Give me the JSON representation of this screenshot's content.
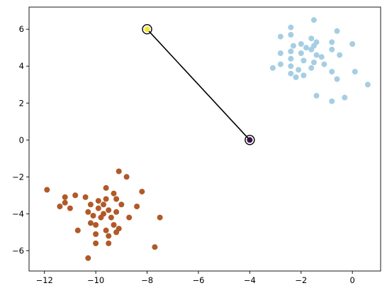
{
  "chart_data": {
    "type": "scatter",
    "title": "",
    "xlabel": "",
    "ylabel": "",
    "xlim": [
      -12.6,
      1.1
    ],
    "ylim": [
      -7.1,
      7.2
    ],
    "x_ticks": [
      -12,
      -10,
      -8,
      -6,
      -4,
      -2,
      0
    ],
    "y_ticks": [
      -6,
      -4,
      -2,
      0,
      2,
      4,
      6
    ],
    "x_tick_labels": [
      "−12",
      "−10",
      "−8",
      "−6",
      "−4",
      "−2",
      "0"
    ],
    "y_tick_labels": [
      "−6",
      "−4",
      "−2",
      "0",
      "2",
      "4",
      "6"
    ],
    "grid": false,
    "series": [
      {
        "color": "#a6cee3",
        "points": [
          [
            -1.5,
            6.5
          ],
          [
            -2.4,
            6.1
          ],
          [
            -0.6,
            5.9
          ],
          [
            -2.8,
            5.6
          ],
          [
            -2.4,
            5.7
          ],
          [
            -1.6,
            5.5
          ],
          [
            -2.0,
            5.2
          ],
          [
            -1.4,
            5.3
          ],
          [
            -1.5,
            5.1
          ],
          [
            -2.3,
            5.1
          ],
          [
            -0.8,
            5.3
          ],
          [
            0.0,
            5.2
          ],
          [
            -1.8,
            5.0
          ],
          [
            -1.6,
            4.9
          ],
          [
            -0.8,
            4.9
          ],
          [
            -2.4,
            4.8
          ],
          [
            -2.8,
            4.7
          ],
          [
            -2.0,
            4.7
          ],
          [
            -1.4,
            4.6
          ],
          [
            -0.5,
            4.6
          ],
          [
            -1.2,
            4.5
          ],
          [
            -2.4,
            4.4
          ],
          [
            -1.9,
            4.3
          ],
          [
            -1.5,
            4.2
          ],
          [
            -1.1,
            4.1
          ],
          [
            -2.8,
            4.1
          ],
          [
            -2.4,
            4.0
          ],
          [
            -1.6,
            3.9
          ],
          [
            -3.1,
            3.9
          ],
          [
            -2.1,
            3.8
          ],
          [
            -0.8,
            3.7
          ],
          [
            -2.4,
            3.6
          ],
          [
            0.1,
            3.7
          ],
          [
            -1.9,
            3.5
          ],
          [
            -2.2,
            3.4
          ],
          [
            -0.6,
            3.3
          ],
          [
            0.6,
            3.0
          ],
          [
            -1.4,
            2.4
          ],
          [
            -0.3,
            2.3
          ],
          [
            -0.8,
            2.1
          ]
        ]
      },
      {
        "color": "#b15928",
        "points": [
          [
            -9.1,
            -1.7
          ],
          [
            -8.8,
            -2.0
          ],
          [
            -11.9,
            -2.7
          ],
          [
            -9.6,
            -2.6
          ],
          [
            -8.2,
            -2.8
          ],
          [
            -10.8,
            -3.0
          ],
          [
            -11.2,
            -3.1
          ],
          [
            -10.4,
            -3.1
          ],
          [
            -9.3,
            -2.9
          ],
          [
            -9.9,
            -3.3
          ],
          [
            -9.6,
            -3.2
          ],
          [
            -9.2,
            -3.2
          ],
          [
            -11.2,
            -3.4
          ],
          [
            -11.4,
            -3.6
          ],
          [
            -11.0,
            -3.7
          ],
          [
            -10.2,
            -3.5
          ],
          [
            -9.7,
            -3.5
          ],
          [
            -9.0,
            -3.5
          ],
          [
            -8.4,
            -3.6
          ],
          [
            -9.9,
            -3.7
          ],
          [
            -9.5,
            -3.8
          ],
          [
            -9.2,
            -3.9
          ],
          [
            -10.3,
            -3.9
          ],
          [
            -10.1,
            -4.1
          ],
          [
            -9.8,
            -4.2
          ],
          [
            -9.4,
            -4.2
          ],
          [
            -9.7,
            -4.0
          ],
          [
            -8.7,
            -4.2
          ],
          [
            -7.5,
            -4.2
          ],
          [
            -10.2,
            -4.5
          ],
          [
            -10.0,
            -4.6
          ],
          [
            -9.3,
            -4.6
          ],
          [
            -9.1,
            -4.8
          ],
          [
            -10.7,
            -4.9
          ],
          [
            -9.6,
            -4.9
          ],
          [
            -10.0,
            -5.1
          ],
          [
            -9.5,
            -5.2
          ],
          [
            -9.2,
            -5.0
          ],
          [
            -10.0,
            -5.6
          ],
          [
            -9.5,
            -5.6
          ],
          [
            -7.7,
            -5.8
          ],
          [
            -10.3,
            -6.4
          ]
        ]
      }
    ],
    "centroid_path": {
      "color": "#000000",
      "points": [
        [
          -8.0,
          6.0
        ],
        [
          -4.0,
          0.0
        ]
      ],
      "markers": [
        {
          "x": -8.0,
          "y": 6.0,
          "fill": "#f6e53a"
        },
        {
          "x": -4.0,
          "y": 0.0,
          "fill": "#3c0f4f"
        }
      ]
    }
  }
}
